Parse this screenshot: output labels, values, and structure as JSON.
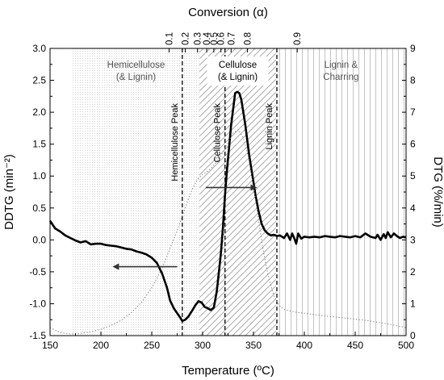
{
  "chart_data": {
    "type": "line",
    "xlabel": "Temperature (ºC)",
    "ylabel_left": "DDTG (min⁻²)",
    "ylabel_right": "DTG (%/min)",
    "top_axis_label": "Conversion (α)",
    "xlim": [
      150,
      500
    ],
    "ylim_left": [
      -1.5,
      3.0
    ],
    "ylim_right": [
      0,
      9
    ],
    "x_ticks": [
      150,
      200,
      250,
      300,
      350,
      400,
      450,
      500
    ],
    "y_left_ticks": [
      "-1.5",
      "-1.0",
      "-0.5",
      "0.0",
      "0.5",
      "1.0",
      "1.5",
      "2.0",
      "2.5",
      "3.0"
    ],
    "y_right_ticks": [
      "0",
      "1",
      "2",
      "3",
      "4",
      "5",
      "6",
      "7",
      "8",
      "9"
    ],
    "conversion_ticks": [
      {
        "label": "0.1",
        "x": 267
      },
      {
        "label": "0.2",
        "x": 283
      },
      {
        "label": "0.3",
        "x": 295
      },
      {
        "label": "0.4",
        "x": 304
      },
      {
        "label": "0.5",
        "x": 311
      },
      {
        "label": "0.6",
        "x": 318
      },
      {
        "label": "0.7",
        "x": 328
      },
      {
        "label": "0.8",
        "x": 344
      },
      {
        "label": "0.9",
        "x": 393
      }
    ],
    "regions": [
      {
        "label_lines": [
          "Hemicellulose",
          "(& Lignin)"
        ],
        "x_start": 172,
        "x_end": 297,
        "fill": "dots"
      },
      {
        "label_lines": [
          "Cellulose",
          "(& Lignin)"
        ],
        "x_start": 297,
        "x_end": 372,
        "fill": "diagonal-hatch"
      },
      {
        "label_lines": [
          "Lignin &",
          "Charring"
        ],
        "x_start": 372,
        "x_end": 500,
        "fill": "vertical-lines"
      }
    ],
    "peaks": [
      {
        "label": "Hemicellulose Peak",
        "x": 280
      },
      {
        "label": "Cellulose Peak",
        "x": 322
      },
      {
        "label": "Lignin Peak",
        "x": 373
      }
    ],
    "series": [
      {
        "role": "DDTG",
        "axis": "left",
        "style": "solid",
        "x": [
          150,
          155,
          160,
          165,
          170,
          175,
          180,
          185,
          190,
          195,
          200,
          205,
          210,
          215,
          220,
          225,
          230,
          235,
          240,
          245,
          250,
          255,
          260,
          265,
          268,
          272,
          275,
          278,
          280,
          283,
          286,
          290,
          293,
          296,
          299,
          302,
          305,
          308,
          311,
          314,
          316,
          318,
          320,
          322,
          324,
          326,
          328,
          330,
          332,
          334,
          336,
          338,
          340,
          342,
          344,
          346,
          348,
          350,
          352,
          355,
          358,
          361,
          364,
          367,
          370,
          373,
          376,
          380,
          383,
          386,
          388,
          390,
          392,
          394,
          397,
          400,
          405,
          410,
          415,
          420,
          425,
          430,
          435,
          440,
          445,
          450,
          455,
          460,
          465,
          470,
          472,
          475,
          478,
          480,
          482,
          485,
          488,
          491,
          494,
          497,
          500
        ],
        "values": [
          0.3,
          0.18,
          0.13,
          0.07,
          0.03,
          -0.01,
          -0.04,
          -0.02,
          -0.07,
          -0.06,
          -0.06,
          -0.08,
          -0.09,
          -0.1,
          -0.12,
          -0.14,
          -0.15,
          -0.18,
          -0.2,
          -0.23,
          -0.28,
          -0.36,
          -0.52,
          -0.75,
          -0.95,
          -1.08,
          -1.15,
          -1.22,
          -1.27,
          -1.25,
          -1.2,
          -1.1,
          -1.02,
          -0.96,
          -0.98,
          -1.05,
          -1.07,
          -1.1,
          -1.06,
          -0.8,
          -0.5,
          -0.2,
          0.2,
          0.7,
          1.1,
          1.45,
          1.8,
          2.05,
          2.3,
          2.32,
          2.3,
          2.2,
          2.0,
          1.8,
          1.55,
          1.3,
          1.1,
          0.9,
          0.7,
          0.45,
          0.25,
          0.15,
          0.1,
          0.07,
          0.08,
          0.06,
          0.07,
          0.03,
          0.1,
          0.0,
          0.1,
          0.03,
          -0.06,
          0.1,
          0.02,
          0.05,
          0.04,
          0.05,
          0.04,
          0.06,
          0.05,
          0.04,
          0.06,
          0.05,
          0.04,
          0.06,
          0.04,
          0.1,
          0.05,
          0.03,
          0.08,
          0.0,
          0.09,
          0.03,
          0.12,
          0.04,
          0.1,
          0.06,
          0.03,
          0.05,
          0.04
        ]
      },
      {
        "role": "DTG",
        "axis": "right",
        "style": "dotted",
        "x": [
          150,
          160,
          170,
          180,
          190,
          200,
          210,
          220,
          230,
          240,
          250,
          260,
          265,
          270,
          275,
          280,
          285,
          290,
          295,
          300,
          305,
          310,
          315,
          320,
          325,
          330,
          335,
          340,
          345,
          350,
          355,
          360,
          365,
          370,
          375,
          380,
          390,
          400,
          420,
          440,
          460,
          480,
          500
        ],
        "values": [
          0.25,
          0.1,
          0.05,
          0.07,
          0.12,
          0.2,
          0.32,
          0.48,
          0.72,
          1.05,
          1.5,
          2.1,
          2.5,
          2.9,
          3.3,
          3.75,
          4.2,
          4.6,
          4.9,
          5.05,
          5.15,
          5.3,
          5.5,
          5.75,
          6.05,
          6.35,
          6.45,
          6.2,
          5.6,
          4.7,
          3.6,
          2.6,
          1.8,
          1.25,
          0.95,
          0.82,
          0.74,
          0.7,
          0.62,
          0.55,
          0.48,
          0.38,
          0.25
        ]
      }
    ],
    "arrows": [
      {
        "direction": "left",
        "from_x": 275,
        "to_x": 213,
        "y": -0.42
      },
      {
        "direction": "right",
        "from_x": 303,
        "to_x": 352,
        "y": 0.82
      }
    ],
    "grid": false,
    "legend": "none"
  }
}
